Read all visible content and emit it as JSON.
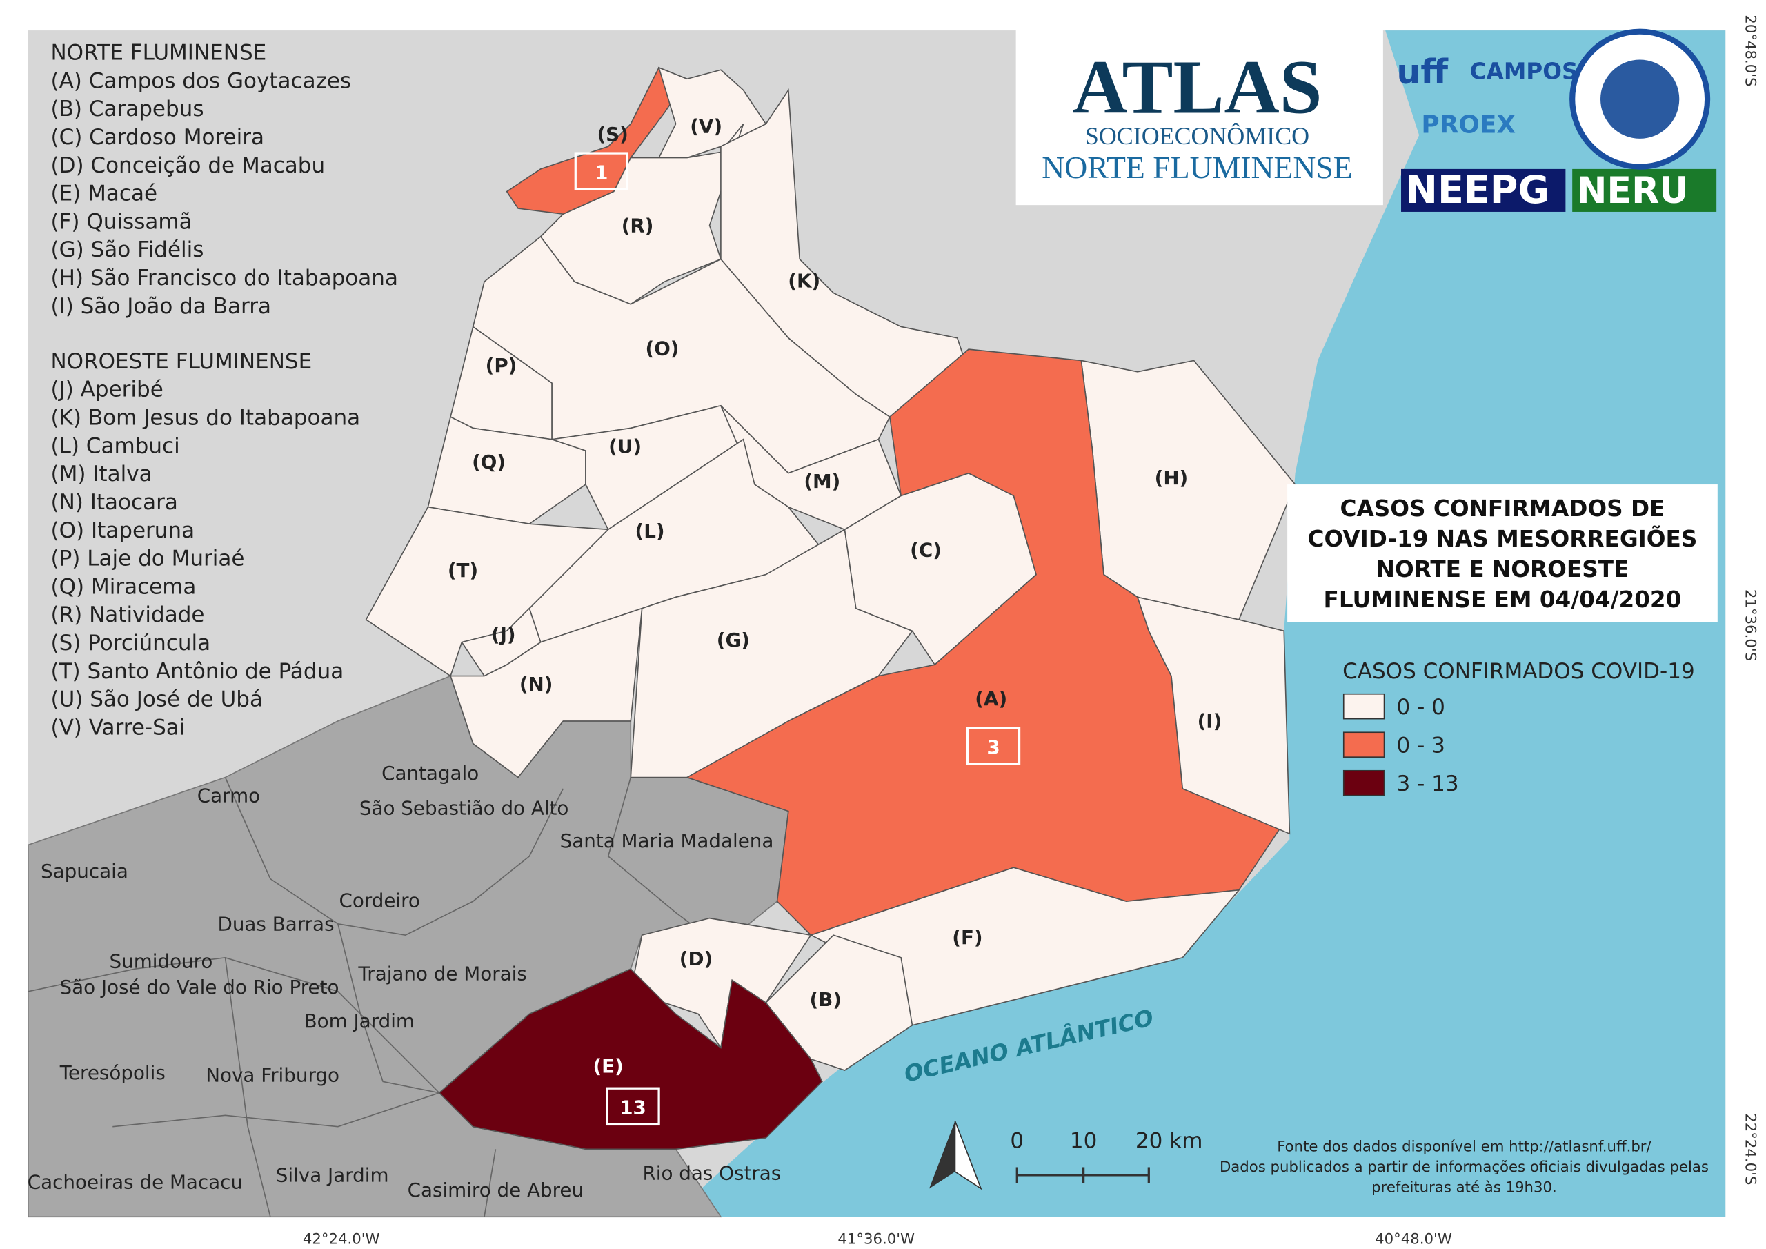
{
  "regions": [
    {
      "title": "NORTE FLUMINENSE",
      "items": [
        "(A) Campos dos Goytacazes",
        "(B) Carapebus",
        "(C) Cardoso Moreira",
        "(D) Conceição de Macabu",
        "(E) Macaé",
        "(F) Quissamã",
        "(G) São Fidélis",
        "(H) São Francisco do Itabapoana",
        "(I) São João da Barra"
      ]
    },
    {
      "title": "NOROESTE FLUMINENSE",
      "items": [
        "(J) Aperibé",
        "(K) Bom Jesus do Itabapoana",
        "(L) Cambuci",
        "(M) Italva",
        "(N) Itaocara",
        "(O) Itaperuna",
        "(P) Laje do Muriaé",
        "(Q) Miracema",
        "(R) Natividade",
        "(S) Porciúncula",
        "(T) Santo Antônio de Pádua",
        "(U) São José de Ubá",
        "(V) Varre-Sai"
      ]
    }
  ],
  "map_labels": [
    "(A)",
    "(B)",
    "(C)",
    "(D)",
    "(E)",
    "(F)",
    "(G)",
    "(H)",
    "(I)",
    "(J)",
    "(K)",
    "(L)",
    "(M)",
    "(N)",
    "(O)",
    "(P)",
    "(Q)",
    "(R)",
    "(S)",
    "(T)",
    "(U)",
    "(V)"
  ],
  "case_counts": [
    1,
    3,
    13
  ],
  "neighbors": [
    "Cantagalo",
    "Carmo",
    "São Sebastião do Alto",
    "Santa Maria Madalena",
    "Sapucaia",
    "Cordeiro",
    "Duas Barras",
    "Sumidouro",
    "Trajano de Morais",
    "São José do Vale do Rio Preto",
    "Bom Jardim",
    "Teresópolis",
    "Nova Friburgo",
    "Cachoeiras de Macacu",
    "Silva Jardim",
    "Casimiro de Abreu",
    "Rio das Ostras"
  ],
  "ocean": "OCEANO ATLÂNTICO",
  "title": [
    "CASOS CONFIRMADOS DE",
    "COVID-19 NAS MESORREGIÕES",
    "NORTE E NOROESTE",
    "FLUMINENSE EM 04/04/2020"
  ],
  "legend": {
    "title": "CASOS CONFIRMADOS COVID-19",
    "classes": [
      {
        "label": "0 - 0",
        "color": "#fcf3ee"
      },
      {
        "label": "0 - 3",
        "color": "#f46c4f"
      },
      {
        "label": "3 - 13",
        "color": "#6b0010"
      }
    ]
  },
  "coordinates": {
    "latitude": [
      "20°48.0'S",
      "21°36.0'S",
      "22°24.0'S"
    ],
    "longitude": [
      "42°24.0'W",
      "41°36.0'W",
      "40°48.0'W"
    ]
  },
  "scale": [
    "0",
    "10",
    "20 km"
  ],
  "source": [
    "Fonte dos dados disponível em http://atlasnf.uff.br/",
    "Dados publicados a partir de informações oficiais divulgadas pelas",
    "prefeituras até às 19h30."
  ],
  "logo": {
    "title": "ATLAS",
    "line1": "SOCIOECONÔMICO",
    "line2": "NORTE FLUMINENSE",
    "partners": [
      "uff",
      "CAMPOS",
      "PROEX",
      "NEEPG",
      "NERU"
    ]
  }
}
